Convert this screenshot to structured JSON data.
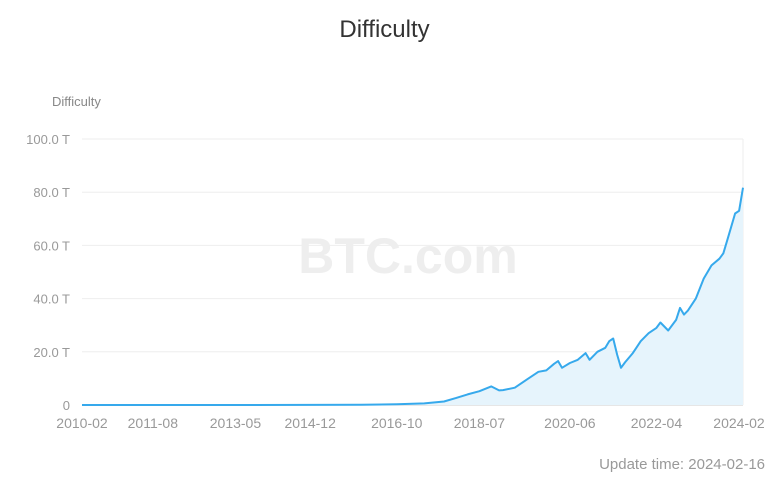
{
  "page": {
    "title": "Difficulty",
    "update_time": "Update time: 2024-02-16"
  },
  "colors": {
    "line": "#36a9ec",
    "area": "#e6f4fc",
    "grid": "#eeeeee",
    "axis_text": "#999999"
  },
  "watermark": "BTC.com",
  "chart_data": {
    "type": "area",
    "title": "Difficulty",
    "ylabel": "Difficulty",
    "ylim": [
      0,
      100
    ],
    "yticks": [
      "0",
      "20.0 T",
      "40.0 T",
      "60.0 T",
      "80.0 T",
      "100.0 T"
    ],
    "xticks": [
      "2010-02",
      "2011-08",
      "2013-05",
      "2014-12",
      "2016-10",
      "2018-07",
      "2020-06",
      "2022-04",
      "2024-02"
    ],
    "grid": true,
    "series": [
      {
        "values_unit": "T",
        "points": [
          [
            "2010-02",
            0
          ],
          [
            "2013-05",
            1e-05
          ],
          [
            "2014-12",
            0.04
          ],
          [
            "2016-01",
            0.1
          ],
          [
            "2016-10",
            0.25
          ],
          [
            "2017-05",
            0.6
          ],
          [
            "2017-10",
            1.3
          ],
          [
            "2018-01",
            2.6
          ],
          [
            "2018-04",
            4.0
          ],
          [
            "2018-07",
            5.2
          ],
          [
            "2018-10",
            7.0
          ],
          [
            "2018-12",
            5.5
          ],
          [
            "2019-01",
            5.6
          ],
          [
            "2019-04",
            6.5
          ],
          [
            "2019-07",
            9.5
          ],
          [
            "2019-10",
            12.5
          ],
          [
            "2019-12",
            13.0
          ],
          [
            "2020-02",
            15.5
          ],
          [
            "2020-03",
            16.5
          ],
          [
            "2020-04",
            14.0
          ],
          [
            "2020-06",
            15.8
          ],
          [
            "2020-08",
            17.0
          ],
          [
            "2020-10",
            19.5
          ],
          [
            "2020-11",
            17.0
          ],
          [
            "2021-01",
            20.0
          ],
          [
            "2021-03",
            21.5
          ],
          [
            "2021-04",
            24.0
          ],
          [
            "2021-05",
            25.0
          ],
          [
            "2021-06",
            19.0
          ],
          [
            "2021-07",
            14.0
          ],
          [
            "2021-08",
            16.0
          ],
          [
            "2021-10",
            19.5
          ],
          [
            "2021-12",
            24.0
          ],
          [
            "2022-02",
            27.0
          ],
          [
            "2022-04",
            29.0
          ],
          [
            "2022-05",
            31.0
          ],
          [
            "2022-07",
            28.0
          ],
          [
            "2022-09",
            32.0
          ],
          [
            "2022-10",
            36.5
          ],
          [
            "2022-11",
            34.0
          ],
          [
            "2022-12",
            35.5
          ],
          [
            "2023-02",
            40.0
          ],
          [
            "2023-04",
            47.5
          ],
          [
            "2023-06",
            52.5
          ],
          [
            "2023-08",
            55.0
          ],
          [
            "2023-09",
            57.0
          ],
          [
            "2023-10",
            62.0
          ],
          [
            "2023-11",
            67.0
          ],
          [
            "2023-12",
            72.0
          ],
          [
            "2024-01",
            73.0
          ],
          [
            "2024-02",
            81.7
          ]
        ]
      }
    ]
  }
}
